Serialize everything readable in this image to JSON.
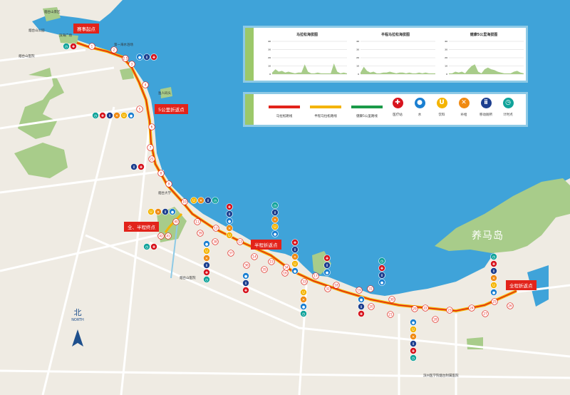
{
  "map": {
    "colors": {
      "land": "#efebe3",
      "sea": "#3fa3d9",
      "park": "#a8cc8a",
      "road": "#ffffff",
      "marathon": "#e2231a",
      "half": "#f4b400",
      "health5k": "#1a9a48"
    },
    "island_label": "养马岛",
    "north": {
      "cn": "北",
      "en": "NORTH"
    },
    "callouts": {
      "start": "赛事起点",
      "five_k_turn": "5公里折返点",
      "finish": "全、半程终点",
      "half_turn": "半程折返点",
      "full_turn": "全程折返点"
    },
    "km_markers": [
      "1",
      "2",
      "2.5",
      "3",
      "4",
      "5",
      "6",
      "7",
      "21",
      "8",
      "9",
      "10",
      "11",
      "12",
      "13",
      "14",
      "15",
      "16",
      "17",
      "18",
      "19",
      "20",
      "21",
      "22",
      "23",
      "24",
      "25",
      "26",
      "27",
      "28",
      "29",
      "30",
      "31",
      "32",
      "33",
      "34",
      "35",
      "36",
      "37",
      "38",
      "39",
      "40",
      "41",
      "42"
    ],
    "pois": [
      "烟台山景区",
      "烟台山公园",
      "烟台山医院",
      "滨海广场",
      "第一海水浴场",
      "渔人码头",
      "烟台大学",
      "烟台山医院",
      "滨州医学院烟台附属医院"
    ]
  },
  "elevation": {
    "charts": [
      {
        "title": "马拉松海拔图",
        "y_unit": "海拔",
        "yticks": [
          "0",
          "10",
          "20",
          "30",
          "40"
        ],
        "profile": [
          2,
          6,
          3,
          4,
          2,
          3,
          2,
          1,
          2,
          2,
          12,
          3,
          1,
          1,
          2,
          1,
          1,
          1,
          1,
          13,
          3,
          1,
          2,
          1
        ]
      },
      {
        "title": "半程马拉松海拔图",
        "y_unit": "海拔",
        "yticks": [
          "0",
          "10",
          "20",
          "30",
          "40"
        ],
        "profile": [
          2,
          9,
          4,
          2,
          3,
          1,
          1,
          2,
          2,
          3,
          2,
          1,
          2,
          2,
          1,
          2,
          1,
          1,
          2,
          1,
          2,
          1,
          1,
          1
        ]
      },
      {
        "title": "健康5公里海拔图",
        "y_unit": "海拔",
        "yticks": [
          "0",
          "10",
          "20",
          "30",
          "40"
        ],
        "profile": [
          1,
          1,
          3,
          2,
          3,
          1,
          6,
          10,
          12,
          3,
          1,
          6,
          8,
          6,
          5,
          3,
          2,
          1,
          1,
          1,
          3,
          4,
          2,
          1
        ]
      }
    ]
  },
  "legend": {
    "routes": [
      {
        "label": "马拉松路线",
        "color": "#e2231a"
      },
      {
        "label": "半程马拉松路线",
        "color": "#f4b400"
      },
      {
        "label": "健康5公里路线",
        "color": "#1a9a48"
      }
    ],
    "stations": [
      {
        "label": "医疗站",
        "icon": "medical-cross-icon",
        "glyph": "✚",
        "color": "#d7141e"
      },
      {
        "label": "水",
        "icon": "water-drop-icon",
        "glyph": "●",
        "color": "#1a7fd1"
      },
      {
        "label": "饮料",
        "icon": "drink-cup-icon",
        "glyph": "U",
        "color": "#f4b400"
      },
      {
        "label": "补给",
        "icon": "supply-utensils-icon",
        "glyph": "✕",
        "color": "#f08a12"
      },
      {
        "label": "移动厕所",
        "icon": "toilet-icon",
        "glyph": "ⅱ",
        "color": "#1d3f8f"
      },
      {
        "label": "计时点",
        "icon": "timer-icon",
        "glyph": "◷",
        "color": "#10a39a"
      }
    ]
  }
}
